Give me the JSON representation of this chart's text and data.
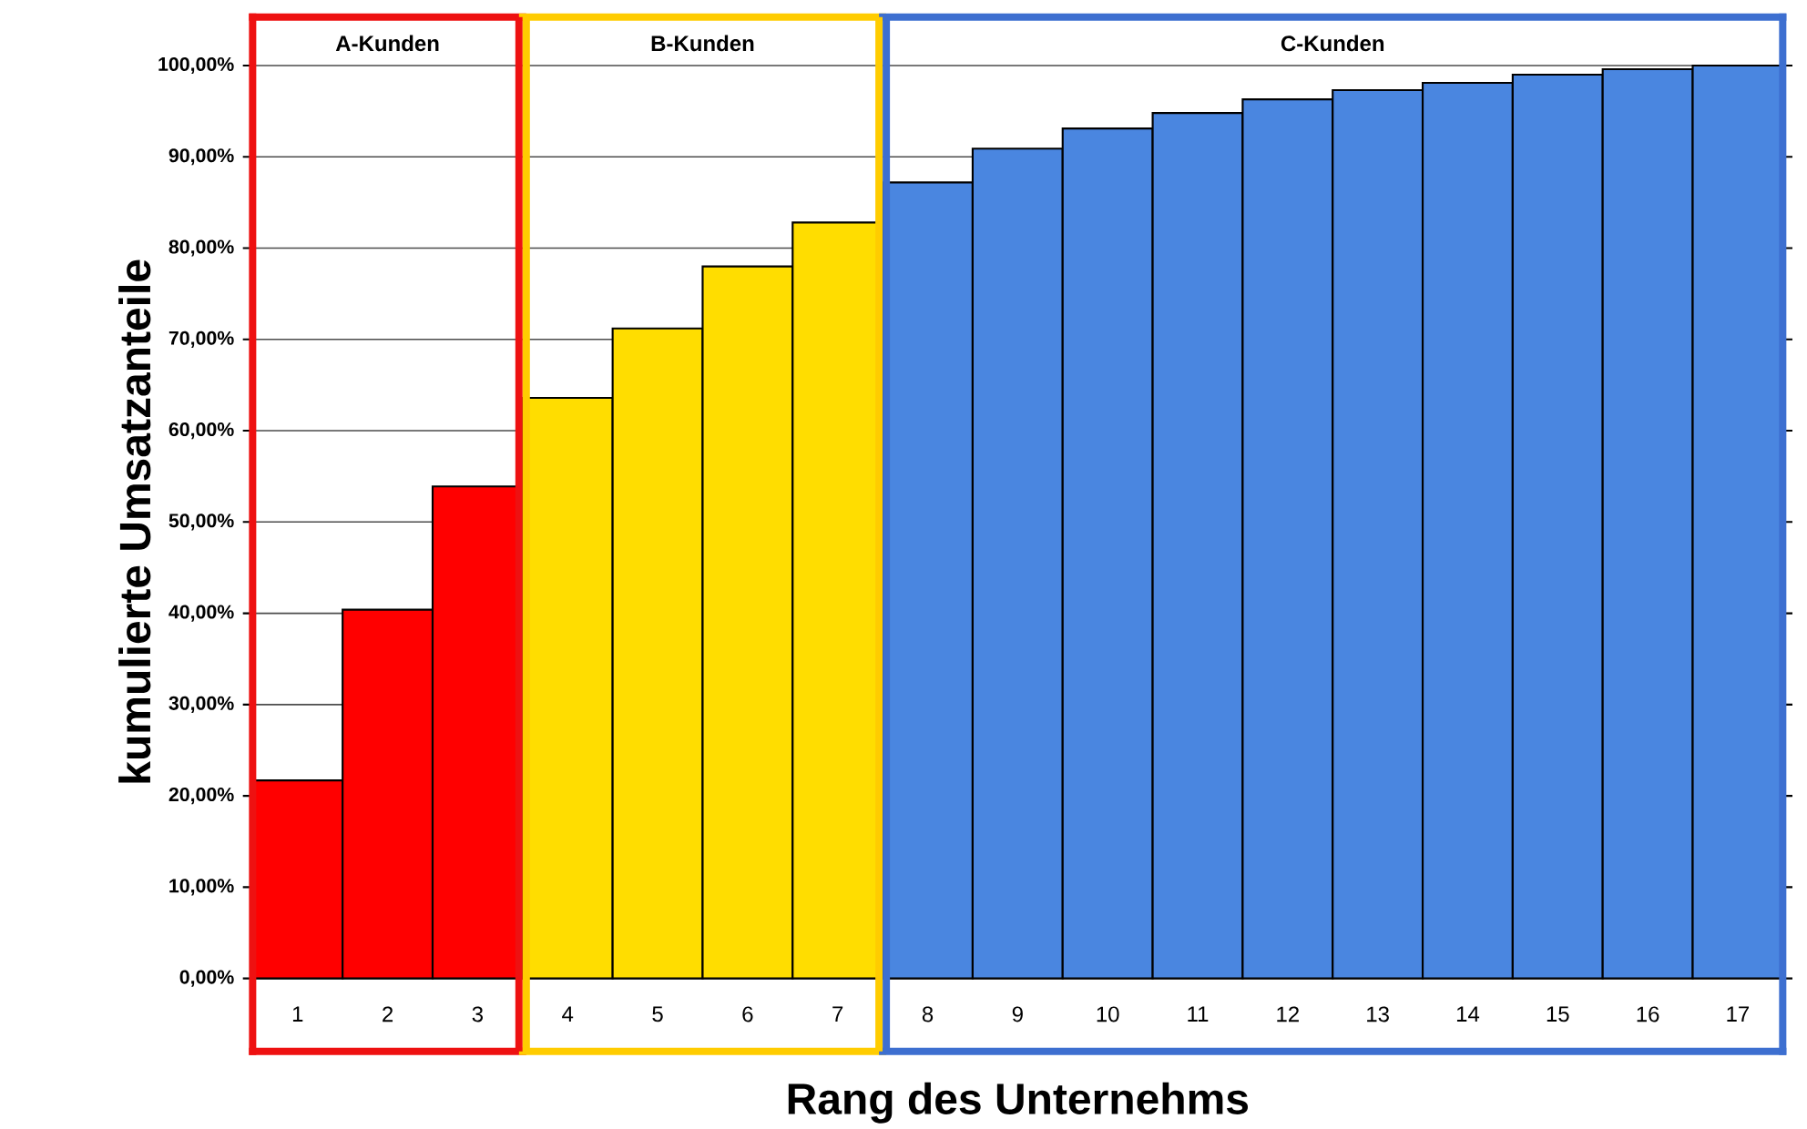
{
  "chart_data": {
    "type": "bar",
    "xlabel": "Rang des Unternehms",
    "ylabel": "kumulierte Umsatzanteile",
    "x": [
      1,
      2,
      3,
      4,
      5,
      6,
      7,
      8,
      9,
      10,
      11,
      12,
      13,
      14,
      15,
      16,
      17
    ],
    "xlim": [
      0.5,
      17.5
    ],
    "xticks": [
      1,
      2,
      3,
      4,
      5,
      6,
      7,
      8,
      9,
      10,
      11,
      12,
      13,
      14,
      15,
      16,
      17
    ],
    "values": [
      21.7,
      40.4,
      53.9,
      63.6,
      71.2,
      78.0,
      82.8,
      87.2,
      90.9,
      93.1,
      94.8,
      96.3,
      97.3,
      98.1,
      99.0,
      99.6,
      100
    ],
    "colors": [
      "#ff0000",
      "#ff0000",
      "#ff0000",
      "#ffdd00",
      "#ffdd00",
      "#ffdd00",
      "#ffdd00",
      "#4a86e0",
      "#4a86e0",
      "#4a86e0",
      "#4a86e0",
      "#4a86e0",
      "#4a86e0",
      "#4a86e0",
      "#4a86e0",
      "#4a86e0",
      "#4a86e0"
    ],
    "ylim": [
      0,
      100
    ],
    "yticks": [
      {
        "value": 0,
        "label": "0,00%"
      },
      {
        "value": 10,
        "label": "10,00%"
      },
      {
        "value": 20,
        "label": "20,00%"
      },
      {
        "value": 30,
        "label": "30,00%"
      },
      {
        "value": 40,
        "label": "40,00%"
      },
      {
        "value": 50,
        "label": "50,00%"
      },
      {
        "value": 60,
        "label": "60,00%"
      },
      {
        "value": 70,
        "label": "70,00%"
      },
      {
        "value": 80,
        "label": "80,00%"
      },
      {
        "value": 90,
        "label": "90,00%"
      },
      {
        "value": 100,
        "label": "100,00%"
      }
    ],
    "grid": "y",
    "annotations": [
      "A-Kunden",
      "B-Kunden",
      "C-Kunden"
    ],
    "ref_lines": [
      {
        "axis": "x",
        "value": 3.5,
        "color": "#ee1111"
      },
      {
        "axis": "x",
        "value": 3.5,
        "color": "#ffcc00"
      },
      {
        "axis": "x",
        "value": 7.5,
        "color": "#ffcc00"
      },
      {
        "axis": "x",
        "value": 7.5,
        "color": "#3d6fd0"
      }
    ]
  }
}
